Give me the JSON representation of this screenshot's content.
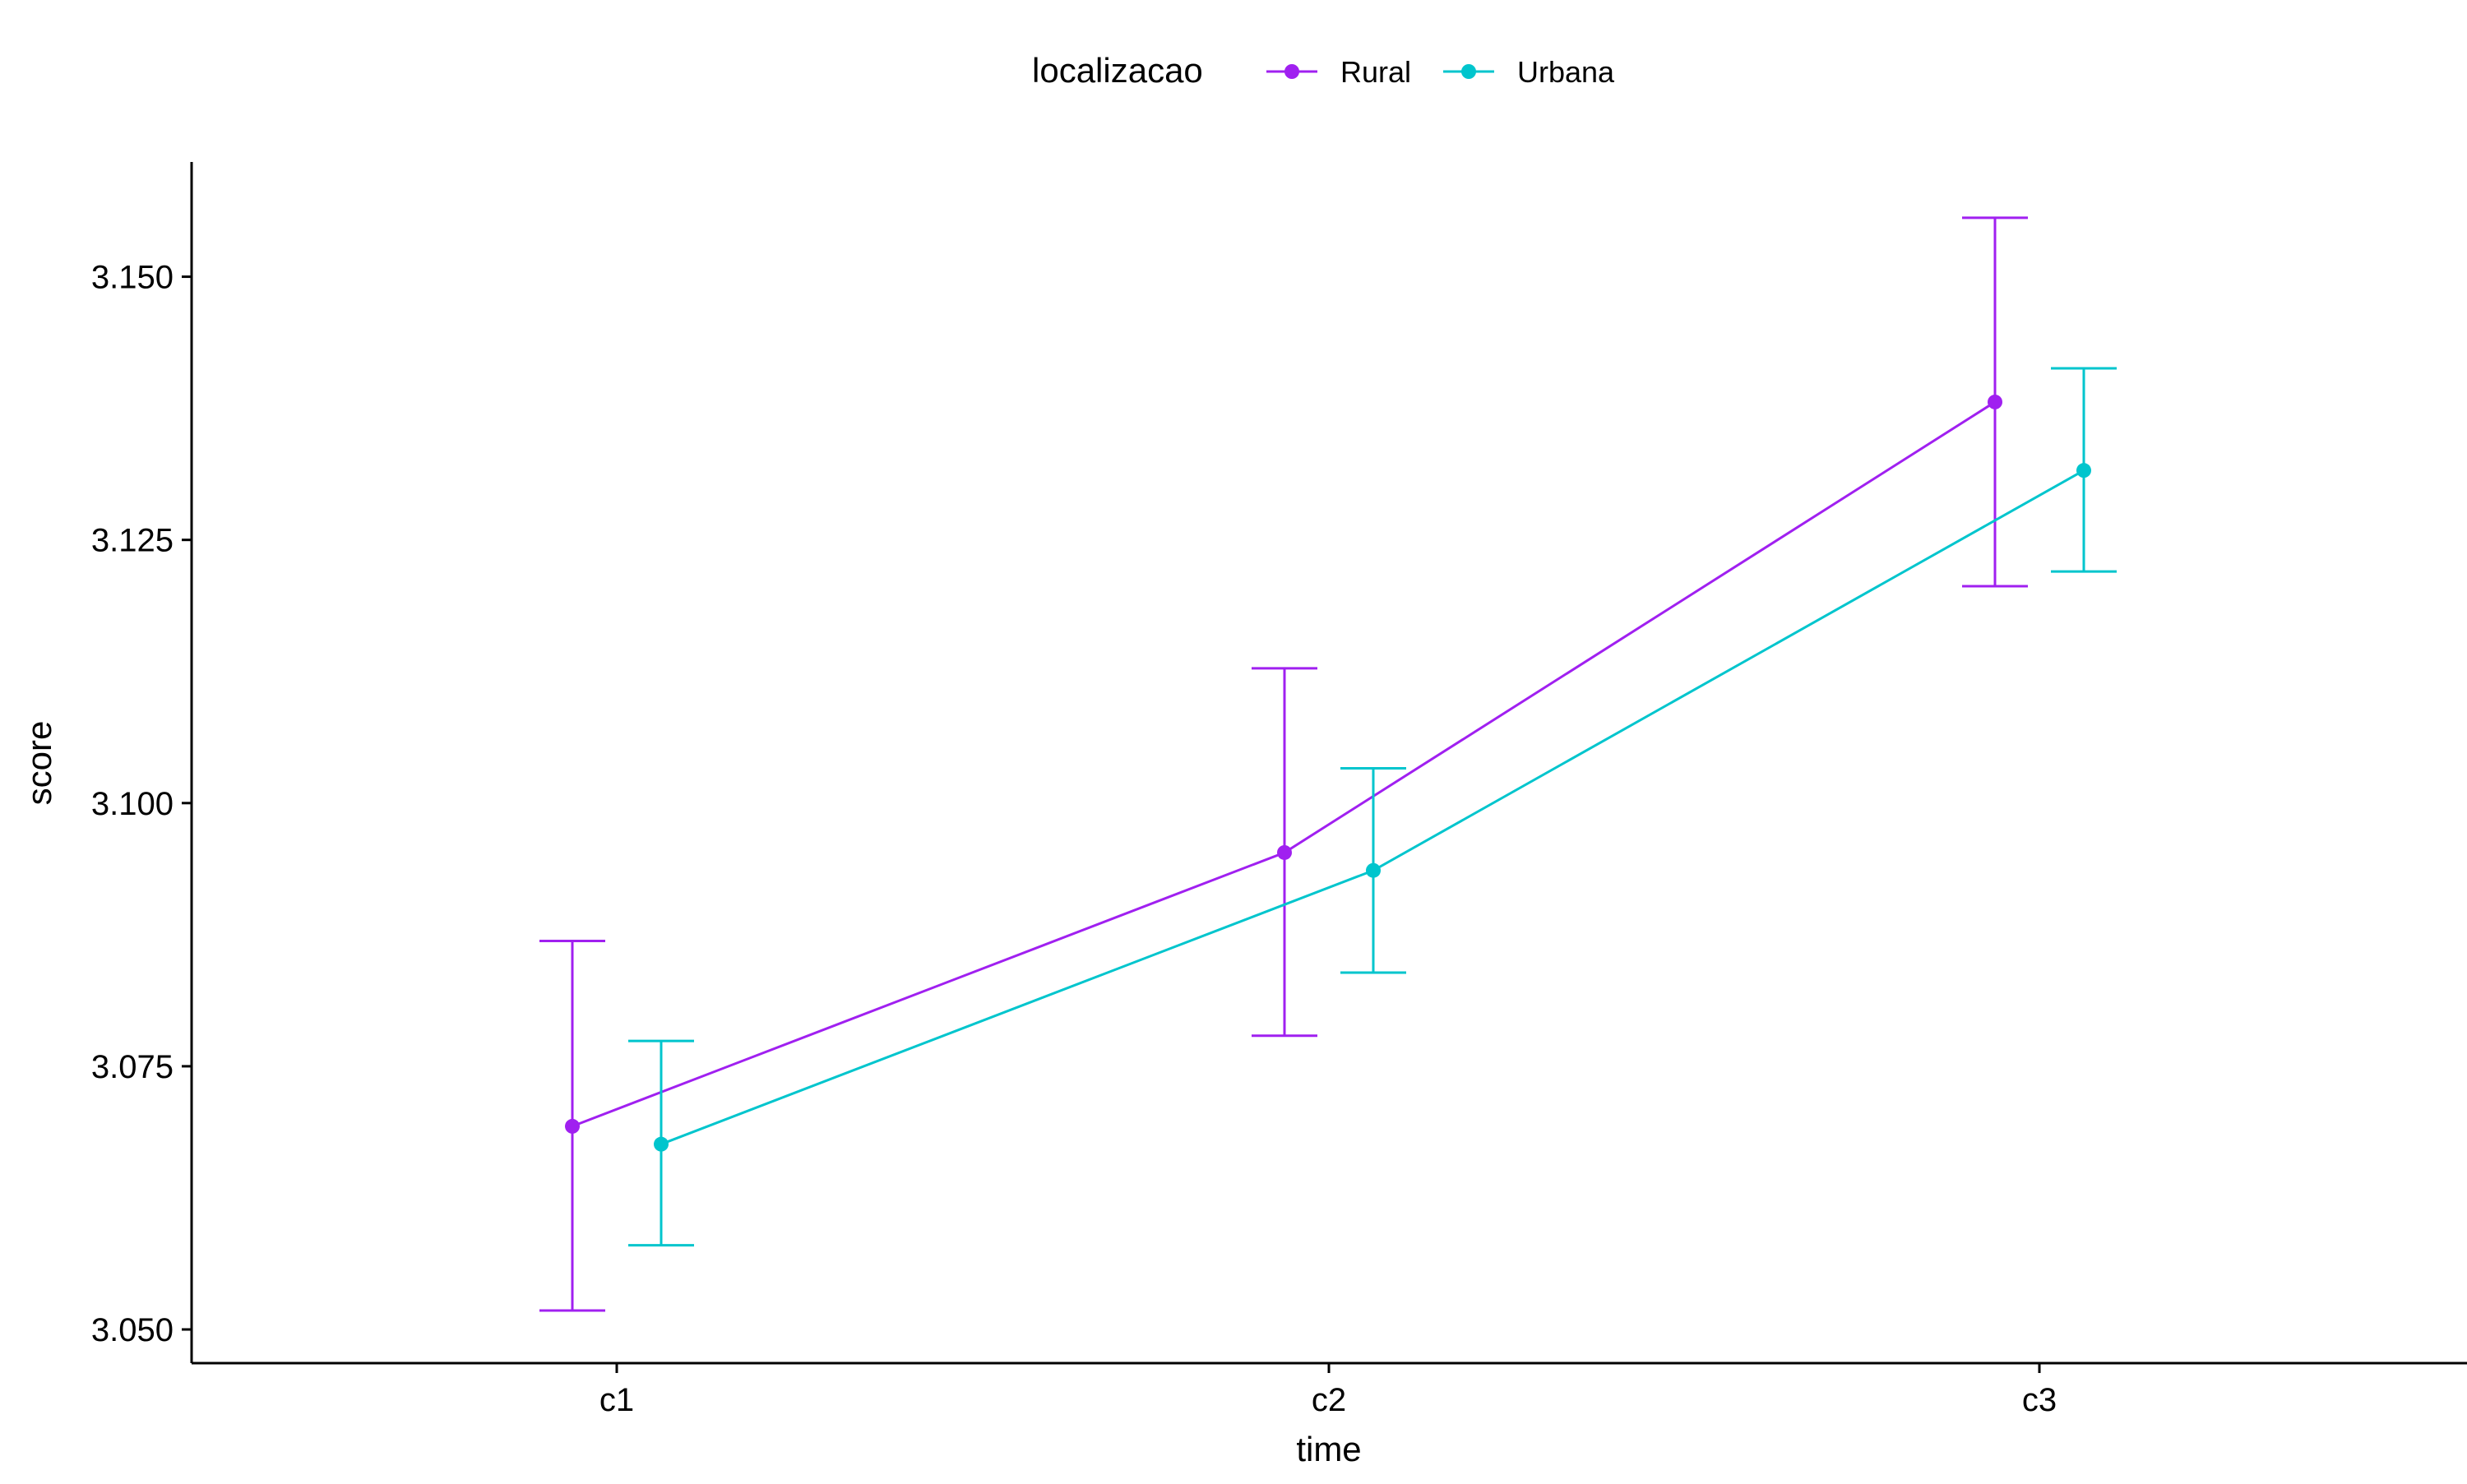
{
  "chart_data": {
    "type": "line",
    "xlabel": "time",
    "ylabel": "score",
    "categories": [
      "c1",
      "c2",
      "c3"
    ],
    "ylim": [
      3.0468,
      3.1609
    ],
    "yticks": [
      3.05,
      3.075,
      3.1,
      3.125,
      3.15
    ],
    "ytick_labels": [
      "3.050",
      "3.075",
      "3.100",
      "3.125",
      "3.150"
    ],
    "grid": false,
    "legend": {
      "title": "localizacao",
      "placement": "top",
      "entries": [
        "Rural",
        "Urbana"
      ]
    },
    "series": [
      {
        "name": "Rural",
        "color": "#A020F0",
        "values": [
          3.0693,
          3.0953,
          3.1381
        ],
        "lower": [
          3.0518,
          3.0779,
          3.1206
        ],
        "upper": [
          3.0869,
          3.1128,
          3.1556
        ]
      },
      {
        "name": "Urbana",
        "color": "#00C5CD",
        "values": [
          3.0676,
          3.0936,
          3.1316
        ],
        "lower": [
          3.058,
          3.0839,
          3.122
        ],
        "upper": [
          3.0774,
          3.1033,
          3.1413
        ]
      }
    ]
  }
}
